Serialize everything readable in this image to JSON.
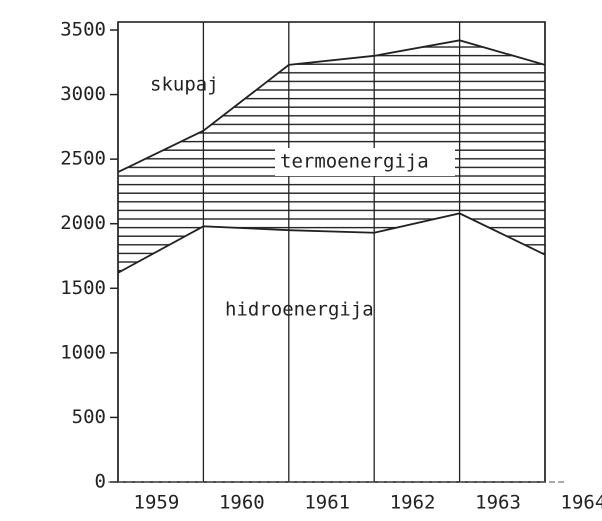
{
  "chart_data": {
    "type": "stacked_area",
    "categories": [
      "1959",
      "1960",
      "1961",
      "1962",
      "1963",
      "1964"
    ],
    "series": [
      {
        "name": "hidroenergija",
        "color": "#ffffff",
        "values": [
          1620,
          1980,
          1950,
          1930,
          2080,
          1760
        ]
      },
      {
        "name": "termoenergija",
        "color": "#222222",
        "values": [
          780,
          740,
          1280,
          1370,
          1340,
          1470
        ]
      }
    ],
    "total_label": "skupaj",
    "ylim": [
      0,
      3500
    ],
    "yticks": [
      0,
      500,
      1000,
      1500,
      2000,
      2500,
      3000,
      3500
    ],
    "vertical_grid": true
  }
}
